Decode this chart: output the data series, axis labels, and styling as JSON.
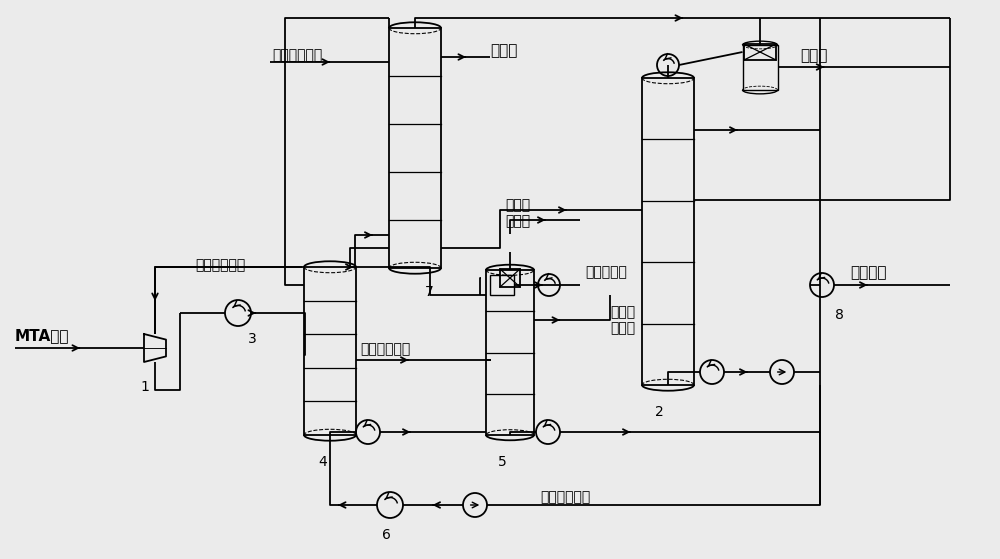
{
  "bg_color": "#ebebeb",
  "line_color": "#000000",
  "labels": {
    "mta": "MTA干气",
    "lean_gasoline": "贫汽油吸附剂",
    "methane": "甲烷氢",
    "rich_gasoline": "富汽油\n吸附剂",
    "non_condensable": "不凝气",
    "extracted_aromatics": "抽出芳烃",
    "c2_enriched": "碳二提浓气",
    "lean_c4": "贫碳四吸收剂",
    "rich_c4": "富碳四吸收剂",
    "extracted_c4": "抽出碳\n四物料",
    "liquid_c4": "液相碳四物料",
    "num1": "1",
    "num2": "2",
    "num3": "3",
    "num4": "4",
    "num5": "5",
    "num6": "6",
    "num7": "7",
    "num8": "8"
  }
}
